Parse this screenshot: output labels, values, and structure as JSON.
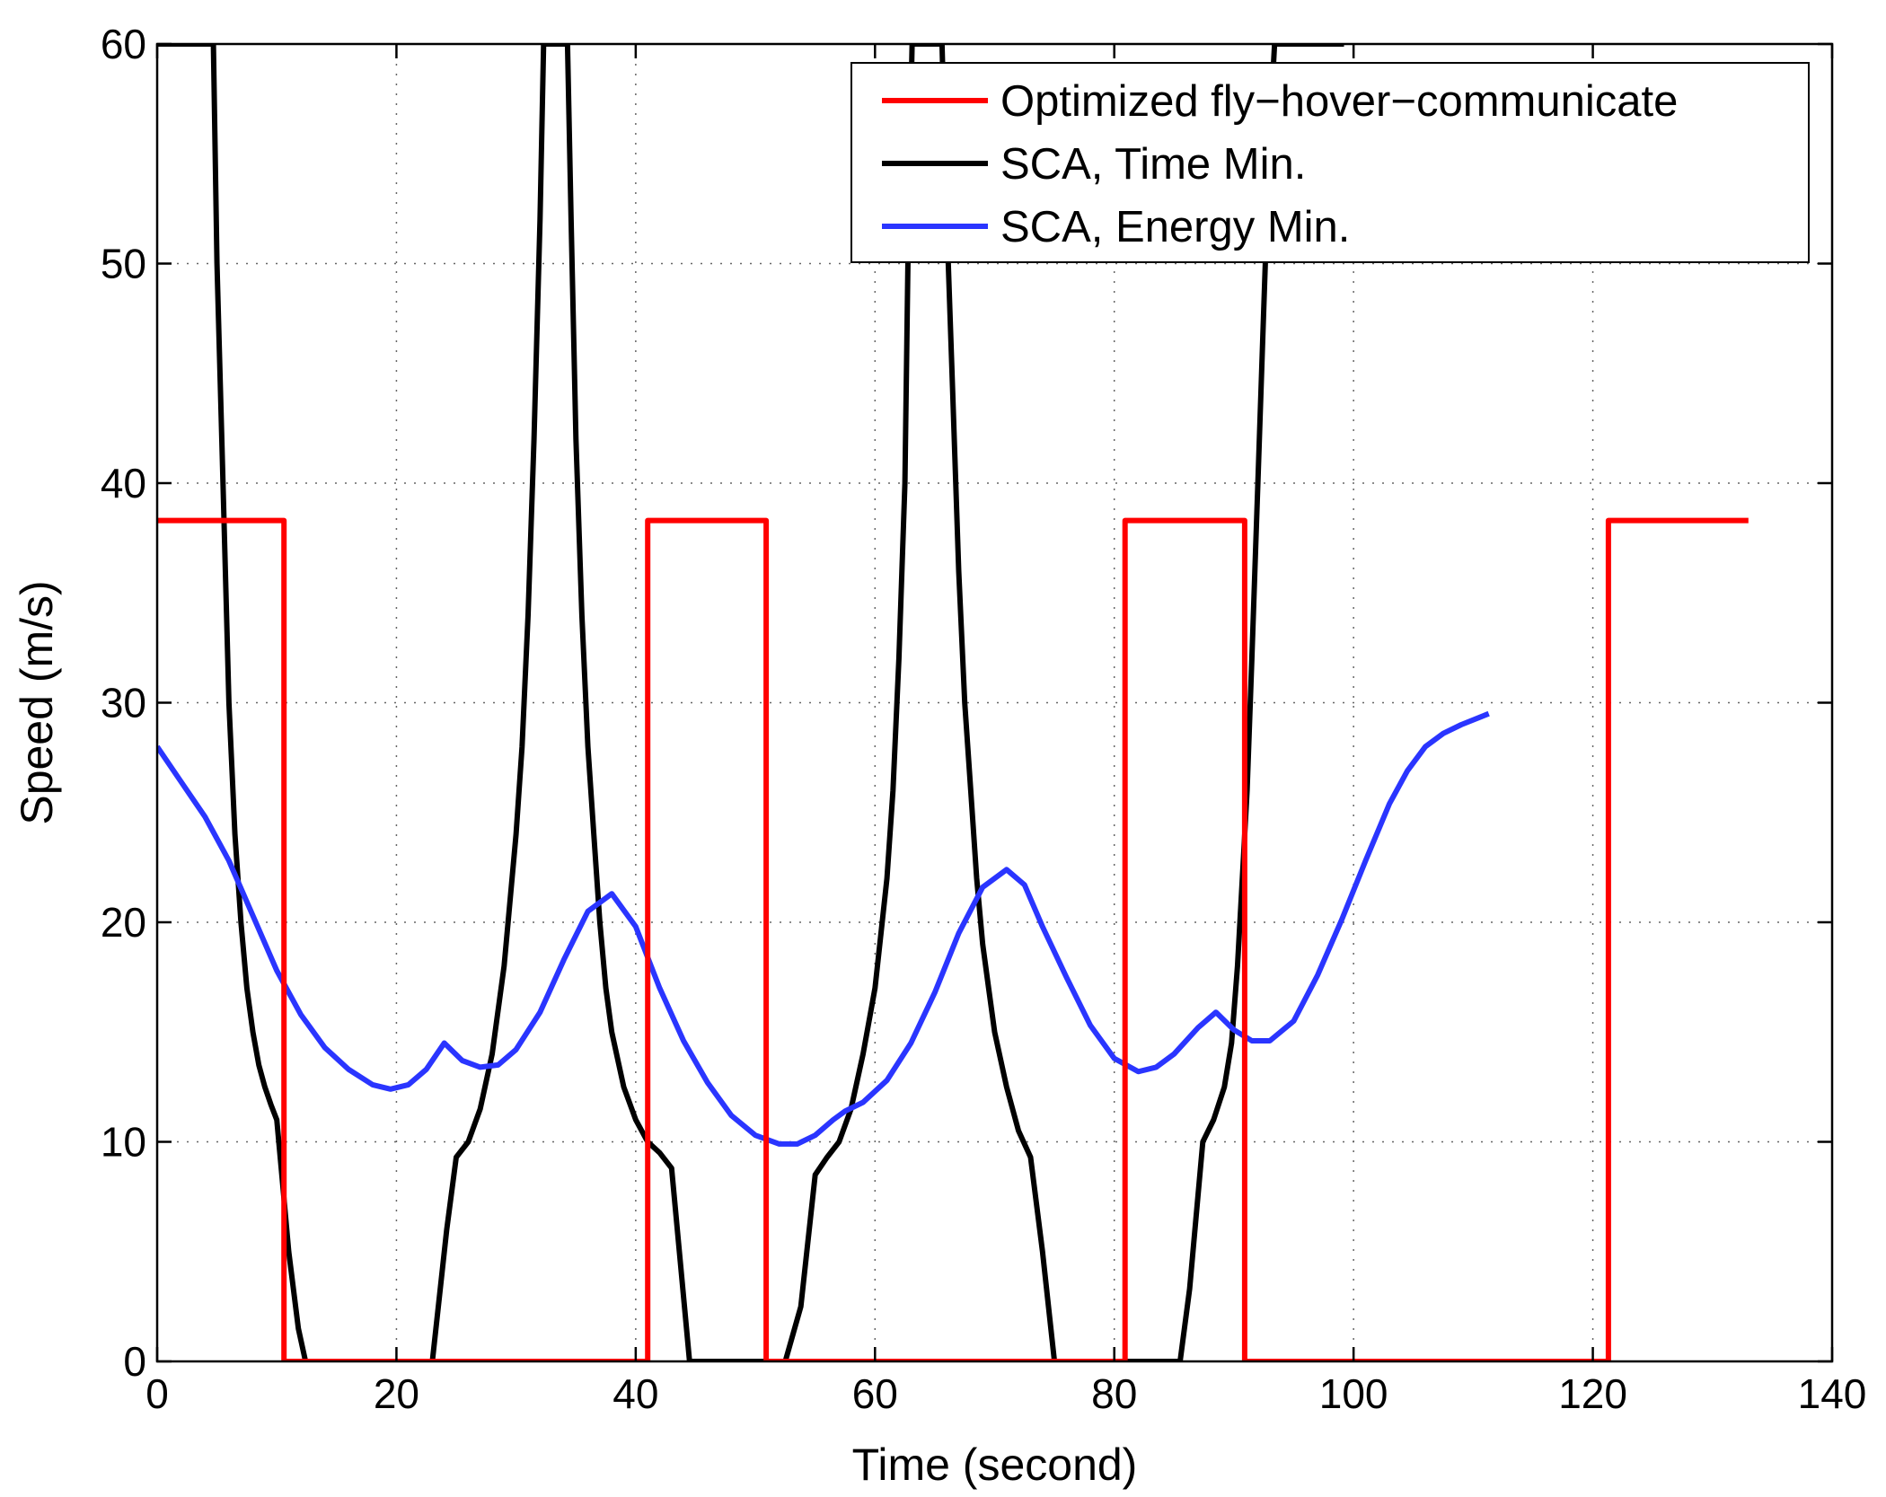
{
  "chart_data": {
    "type": "line",
    "title": "",
    "xlabel": "Time (second)",
    "ylabel": "Speed (m/s)",
    "xlim": [
      0,
      140
    ],
    "ylim": [
      0,
      60
    ],
    "xticks": [
      0,
      20,
      40,
      60,
      80,
      100,
      120,
      140
    ],
    "yticks": [
      0,
      10,
      20,
      30,
      40,
      50,
      60
    ],
    "grid": true,
    "legend_position": "top-right",
    "series": [
      {
        "name": "Optimized fly−hover−communicate",
        "color": "#ff0000",
        "x": [
          0,
          10.6,
          10.6,
          41.0,
          41.0,
          50.9,
          50.9,
          80.9,
          80.9,
          90.9,
          90.9,
          121.3,
          121.3,
          133
        ],
        "y": [
          38.3,
          38.3,
          0,
          0,
          38.3,
          38.3,
          0,
          0,
          38.3,
          38.3,
          0,
          0,
          38.3,
          38.3
        ]
      },
      {
        "name": "SCA, Time Min.",
        "color": "#000000",
        "x": [
          0,
          4.7,
          5.0,
          5.5,
          6.0,
          6.5,
          7.0,
          7.5,
          8.0,
          8.5,
          9.0,
          9.5,
          10.0,
          10.5,
          11.0,
          11.8,
          12.4,
          23.0,
          24.2,
          25.0,
          26.0,
          27.0,
          28.0,
          29.0,
          30.0,
          30.5,
          31.0,
          31.5,
          32.0,
          32.3,
          32.6,
          34.3,
          34.6,
          35.0,
          35.5,
          36.0,
          36.5,
          37.0,
          37.5,
          38.0,
          39.0,
          40.0,
          41.0,
          42.0,
          43.0,
          44.5,
          52.5,
          53.8,
          55.0,
          56.0,
          57.0,
          58.0,
          59.0,
          60.0,
          61.0,
          61.5,
          62.0,
          62.5,
          62.8,
          63.1,
          65.6,
          66.0,
          66.5,
          67.0,
          67.5,
          68.0,
          68.5,
          69.0,
          69.5,
          70.0,
          71.0,
          72.0,
          73.0,
          74.0,
          75.0,
          85.5,
          86.3,
          87.4,
          88.3,
          89.2,
          89.8,
          90.3,
          90.7,
          91.1,
          91.5,
          92.0,
          92.5,
          93.0,
          93.4,
          99.2
        ],
        "y": [
          60,
          60,
          50,
          40,
          30,
          24,
          20,
          17,
          15,
          13.5,
          12.5,
          11.7,
          11.0,
          8,
          5,
          1.5,
          0,
          0,
          6,
          9.3,
          10,
          11.5,
          14,
          18,
          24,
          28,
          34,
          42,
          52,
          60,
          60,
          60,
          52,
          42,
          34,
          28,
          24,
          20,
          17,
          15,
          12.5,
          11,
          10,
          9.5,
          8.8,
          0,
          0,
          2.5,
          8.5,
          9.3,
          10,
          11.5,
          14,
          17,
          22,
          26,
          32,
          40,
          52,
          60,
          60,
          52,
          44,
          36,
          30,
          26,
          22,
          19,
          17,
          15,
          12.5,
          10.5,
          9.3,
          5,
          0,
          0,
          3.3,
          10,
          11,
          12.5,
          14.5,
          18,
          22,
          26,
          32,
          40,
          48,
          56,
          60,
          60
        ]
      },
      {
        "name": "SCA, Energy Min.",
        "color": "#2a35ff",
        "x": [
          0,
          2,
          4,
          6,
          8,
          10,
          12,
          14,
          16,
          18,
          19.5,
          21,
          22.5,
          24,
          25.5,
          27,
          28.5,
          30,
          32,
          34,
          36,
          38,
          40,
          42,
          44,
          46,
          48,
          50,
          52,
          53.5,
          55,
          56.5,
          57.5,
          59,
          61,
          63,
          65,
          67,
          69,
          71,
          72.5,
          74,
          76,
          78,
          80,
          82,
          83.5,
          85,
          87,
          88.5,
          90,
          91.5,
          93,
          95,
          97,
          99,
          101,
          103,
          104.5,
          106,
          107.5,
          109,
          111.3
        ],
        "y": [
          28,
          26.4,
          24.8,
          22.8,
          20.3,
          17.8,
          15.8,
          14.3,
          13.3,
          12.6,
          12.4,
          12.6,
          13.3,
          14.5,
          13.7,
          13.4,
          13.5,
          14.2,
          15.9,
          18.3,
          20.5,
          21.3,
          19.8,
          17.0,
          14.6,
          12.7,
          11.2,
          10.3,
          9.9,
          9.9,
          10.3,
          11.0,
          11.4,
          11.8,
          12.8,
          14.5,
          16.8,
          19.5,
          21.6,
          22.4,
          21.7,
          19.8,
          17.5,
          15.3,
          13.8,
          13.2,
          13.4,
          14.0,
          15.2,
          15.9,
          15.1,
          14.6,
          14.6,
          15.5,
          17.6,
          20.1,
          22.8,
          25.4,
          26.9,
          28.0,
          28.6,
          29.0,
          29.5
        ]
      }
    ]
  }
}
